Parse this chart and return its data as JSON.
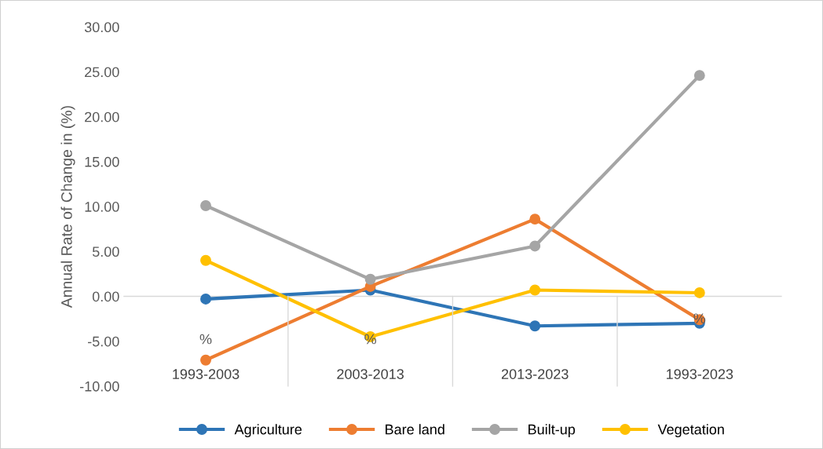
{
  "chart_data": {
    "type": "line",
    "ylabel": "Annual Rate of Change in (%)",
    "categories": [
      "1993-2003",
      "2003-2013",
      "2013-2023",
      "1993-2023"
    ],
    "series": [
      {
        "name": "Agriculture",
        "color": "#2e75b6",
        "values": [
          -0.3,
          0.7,
          -3.3,
          -3.0
        ]
      },
      {
        "name": "Bare land",
        "color": "#ed7d31",
        "values": [
          -7.1,
          1.1,
          8.6,
          -2.6
        ]
      },
      {
        "name": "Built-up",
        "color": "#a5a5a5",
        "values": [
          10.1,
          1.9,
          5.6,
          24.6
        ]
      },
      {
        "name": "Vegetation",
        "color": "#ffc000",
        "values": [
          4.0,
          -4.5,
          0.7,
          0.4
        ]
      }
    ],
    "ylim": [
      -10,
      30
    ],
    "yticks": [
      {
        "value": -10,
        "label": "-10.00"
      },
      {
        "value": -5,
        "label": "-5.00"
      },
      {
        "value": 0,
        "label": "0.00"
      },
      {
        "value": 5,
        "label": "5.00"
      },
      {
        "value": 10,
        "label": "10.00"
      },
      {
        "value": 15,
        "label": "15.00"
      },
      {
        "value": 20,
        "label": "20.00"
      },
      {
        "value": 25,
        "label": "25.00"
      },
      {
        "value": 30,
        "label": "30.00"
      }
    ],
    "annotations": [
      "%",
      "%",
      "%"
    ],
    "ref_lines": [
      {
        "axis": "y",
        "value": 0,
        "color": "#d9d9d9"
      }
    ],
    "grid": false,
    "legend": "bottom",
    "marker": "circle",
    "line_style": "solid"
  }
}
